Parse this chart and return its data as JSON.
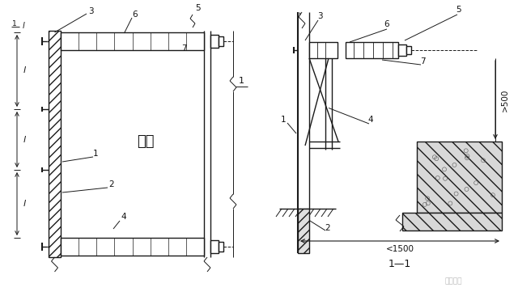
{
  "bg_color": "#ffffff",
  "line_color": "#1a1a1a",
  "text_color": "#111111",
  "figsize": [
    6.4,
    3.66
  ],
  "dpi": 100,
  "jiegou": "结构",
  "section_label": "1—1",
  "dim_1500": "<1500",
  "dim_500": ">500",
  "watermark": "豆丁施工"
}
